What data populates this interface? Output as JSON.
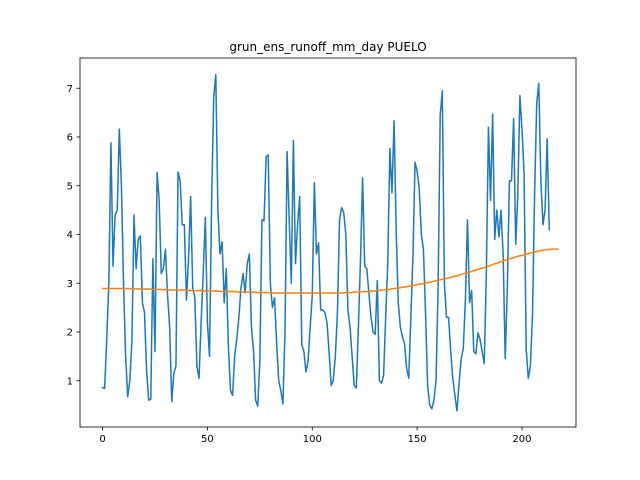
{
  "chart_data": {
    "type": "line",
    "title": "grun_ens_runoff_mm_day PUELO",
    "xlabel": "",
    "ylabel": "",
    "xlim": [
      -10.75,
      225.75
    ],
    "ylim": [
      0.05,
      7.62
    ],
    "xticks": [
      0,
      50,
      100,
      150,
      200
    ],
    "yticks": [
      1,
      2,
      3,
      4,
      5,
      6,
      7
    ],
    "grid": false,
    "legend": "none",
    "series": [
      {
        "color": "#1f77b4",
        "values": [
          0.86,
          0.84,
          1.85,
          3.0,
          5.88,
          3.35,
          4.4,
          4.5,
          6.16,
          5.0,
          3.0,
          1.5,
          0.67,
          1.0,
          1.8,
          4.4,
          3.3,
          3.9,
          3.97,
          2.6,
          2.4,
          1.2,
          0.6,
          0.62,
          3.5,
          1.6,
          5.27,
          4.7,
          3.2,
          3.3,
          3.7,
          2.75,
          2.1,
          0.57,
          1.15,
          1.3,
          5.28,
          5.1,
          4.2,
          4.2,
          2.65,
          3.5,
          4.78,
          2.9,
          2.7,
          1.3,
          1.05,
          2.2,
          3.2,
          4.35,
          2.2,
          1.5,
          4.65,
          6.8,
          7.28,
          4.5,
          3.6,
          3.85,
          2.6,
          3.3,
          1.7,
          0.8,
          0.7,
          1.5,
          1.85,
          2.3,
          2.9,
          3.2,
          2.8,
          3.4,
          3.6,
          2.1,
          1.6,
          0.6,
          0.48,
          1.4,
          4.3,
          4.28,
          5.6,
          5.63,
          3.0,
          2.5,
          2.7,
          1.8,
          1.0,
          0.8,
          0.52,
          2.0,
          5.7,
          4.3,
          3.0,
          5.93,
          3.4,
          4.2,
          4.78,
          1.74,
          1.6,
          1.18,
          1.4,
          2.1,
          2.75,
          5.06,
          3.6,
          3.83,
          2.45,
          2.45,
          2.4,
          2.2,
          1.6,
          0.9,
          1.0,
          1.5,
          2.4,
          4.3,
          4.55,
          4.45,
          4.0,
          2.45,
          2.1,
          1.5,
          0.9,
          0.85,
          2.1,
          3.5,
          5.16,
          3.35,
          3.3,
          2.8,
          2.3,
          2.0,
          1.95,
          3.05,
          1.0,
          0.95,
          1.1,
          2.3,
          3.4,
          5.76,
          4.85,
          6.33,
          4.1,
          2.6,
          2.1,
          1.9,
          1.75,
          1.25,
          1.05,
          2.3,
          3.55,
          5.48,
          5.3,
          4.95,
          4.0,
          3.7,
          2.4,
          0.9,
          0.5,
          0.42,
          0.6,
          1.0,
          2.9,
          6.45,
          6.95,
          3.0,
          2.3,
          2.3,
          1.6,
          1.05,
          0.7,
          0.38,
          0.95,
          1.45,
          1.65,
          2.65,
          4.3,
          2.6,
          2.85,
          1.6,
          1.55,
          1.98,
          1.85,
          1.6,
          1.35,
          3.2,
          6.2,
          4.7,
          6.47,
          3.9,
          4.5,
          3.95,
          4.5,
          3.6,
          1.45,
          2.9,
          5.1,
          5.1,
          6.38,
          3.8,
          4.8,
          6.85,
          6.15,
          5.25,
          1.65,
          1.05,
          1.3,
          2.35,
          4.8,
          6.68,
          7.1,
          5.1,
          4.2,
          4.5,
          5.96,
          4.1
        ]
      },
      {
        "color": "#ff7f0e",
        "values": [
          2.89,
          2.89,
          2.89,
          2.89,
          2.89,
          2.89,
          2.89,
          2.89,
          2.89,
          2.89,
          2.89,
          2.89,
          2.89,
          2.89,
          2.88,
          2.88,
          2.88,
          2.88,
          2.88,
          2.88,
          2.88,
          2.88,
          2.88,
          2.88,
          2.87,
          2.87,
          2.87,
          2.87,
          2.87,
          2.87,
          2.87,
          2.87,
          2.86,
          2.86,
          2.86,
          2.86,
          2.86,
          2.86,
          2.86,
          2.86,
          2.85,
          2.85,
          2.85,
          2.85,
          2.85,
          2.85,
          2.85,
          2.85,
          2.84,
          2.84,
          2.84,
          2.84,
          2.84,
          2.84,
          2.84,
          2.84,
          2.83,
          2.83,
          2.83,
          2.83,
          2.83,
          2.83,
          2.83,
          2.83,
          2.82,
          2.82,
          2.82,
          2.82,
          2.82,
          2.82,
          2.82,
          2.82,
          2.81,
          2.81,
          2.81,
          2.81,
          2.81,
          2.81,
          2.81,
          2.81,
          2.8,
          2.8,
          2.8,
          2.8,
          2.8,
          2.8,
          2.8,
          2.8,
          2.8,
          2.8,
          2.8,
          2.8,
          2.8,
          2.8,
          2.8,
          2.8,
          2.8,
          2.8,
          2.8,
          2.8,
          2.8,
          2.8,
          2.8,
          2.8,
          2.8,
          2.8,
          2.8,
          2.8,
          2.8,
          2.8,
          2.8,
          2.8,
          2.8,
          2.8,
          2.8,
          2.8,
          2.81,
          2.81,
          2.81,
          2.81,
          2.82,
          2.82,
          2.82,
          2.82,
          2.83,
          2.83,
          2.83,
          2.83,
          2.84,
          2.84,
          2.84,
          2.85,
          2.85,
          2.86,
          2.86,
          2.87,
          2.87,
          2.88,
          2.88,
          2.89,
          2.9,
          2.9,
          2.91,
          2.92,
          2.92,
          2.93,
          2.94,
          2.94,
          2.95,
          2.96,
          2.97,
          2.98,
          2.98,
          2.99,
          3.0,
          3.01,
          3.02,
          3.03,
          3.04,
          3.05,
          3.06,
          3.07,
          3.08,
          3.09,
          3.1,
          3.11,
          3.12,
          3.13,
          3.14,
          3.15,
          3.17,
          3.18,
          3.19,
          3.2,
          3.22,
          3.23,
          3.24,
          3.26,
          3.27,
          3.28,
          3.3,
          3.31,
          3.32,
          3.34,
          3.35,
          3.37,
          3.38,
          3.4,
          3.41,
          3.43,
          3.44,
          3.46,
          3.47,
          3.48,
          3.5,
          3.51,
          3.52,
          3.54,
          3.55,
          3.56,
          3.57,
          3.59,
          3.6,
          3.61,
          3.62,
          3.63,
          3.64,
          3.65,
          3.66,
          3.67,
          3.67,
          3.68,
          3.69,
          3.69,
          3.7,
          3.7,
          3.7,
          3.7
        ]
      }
    ]
  }
}
